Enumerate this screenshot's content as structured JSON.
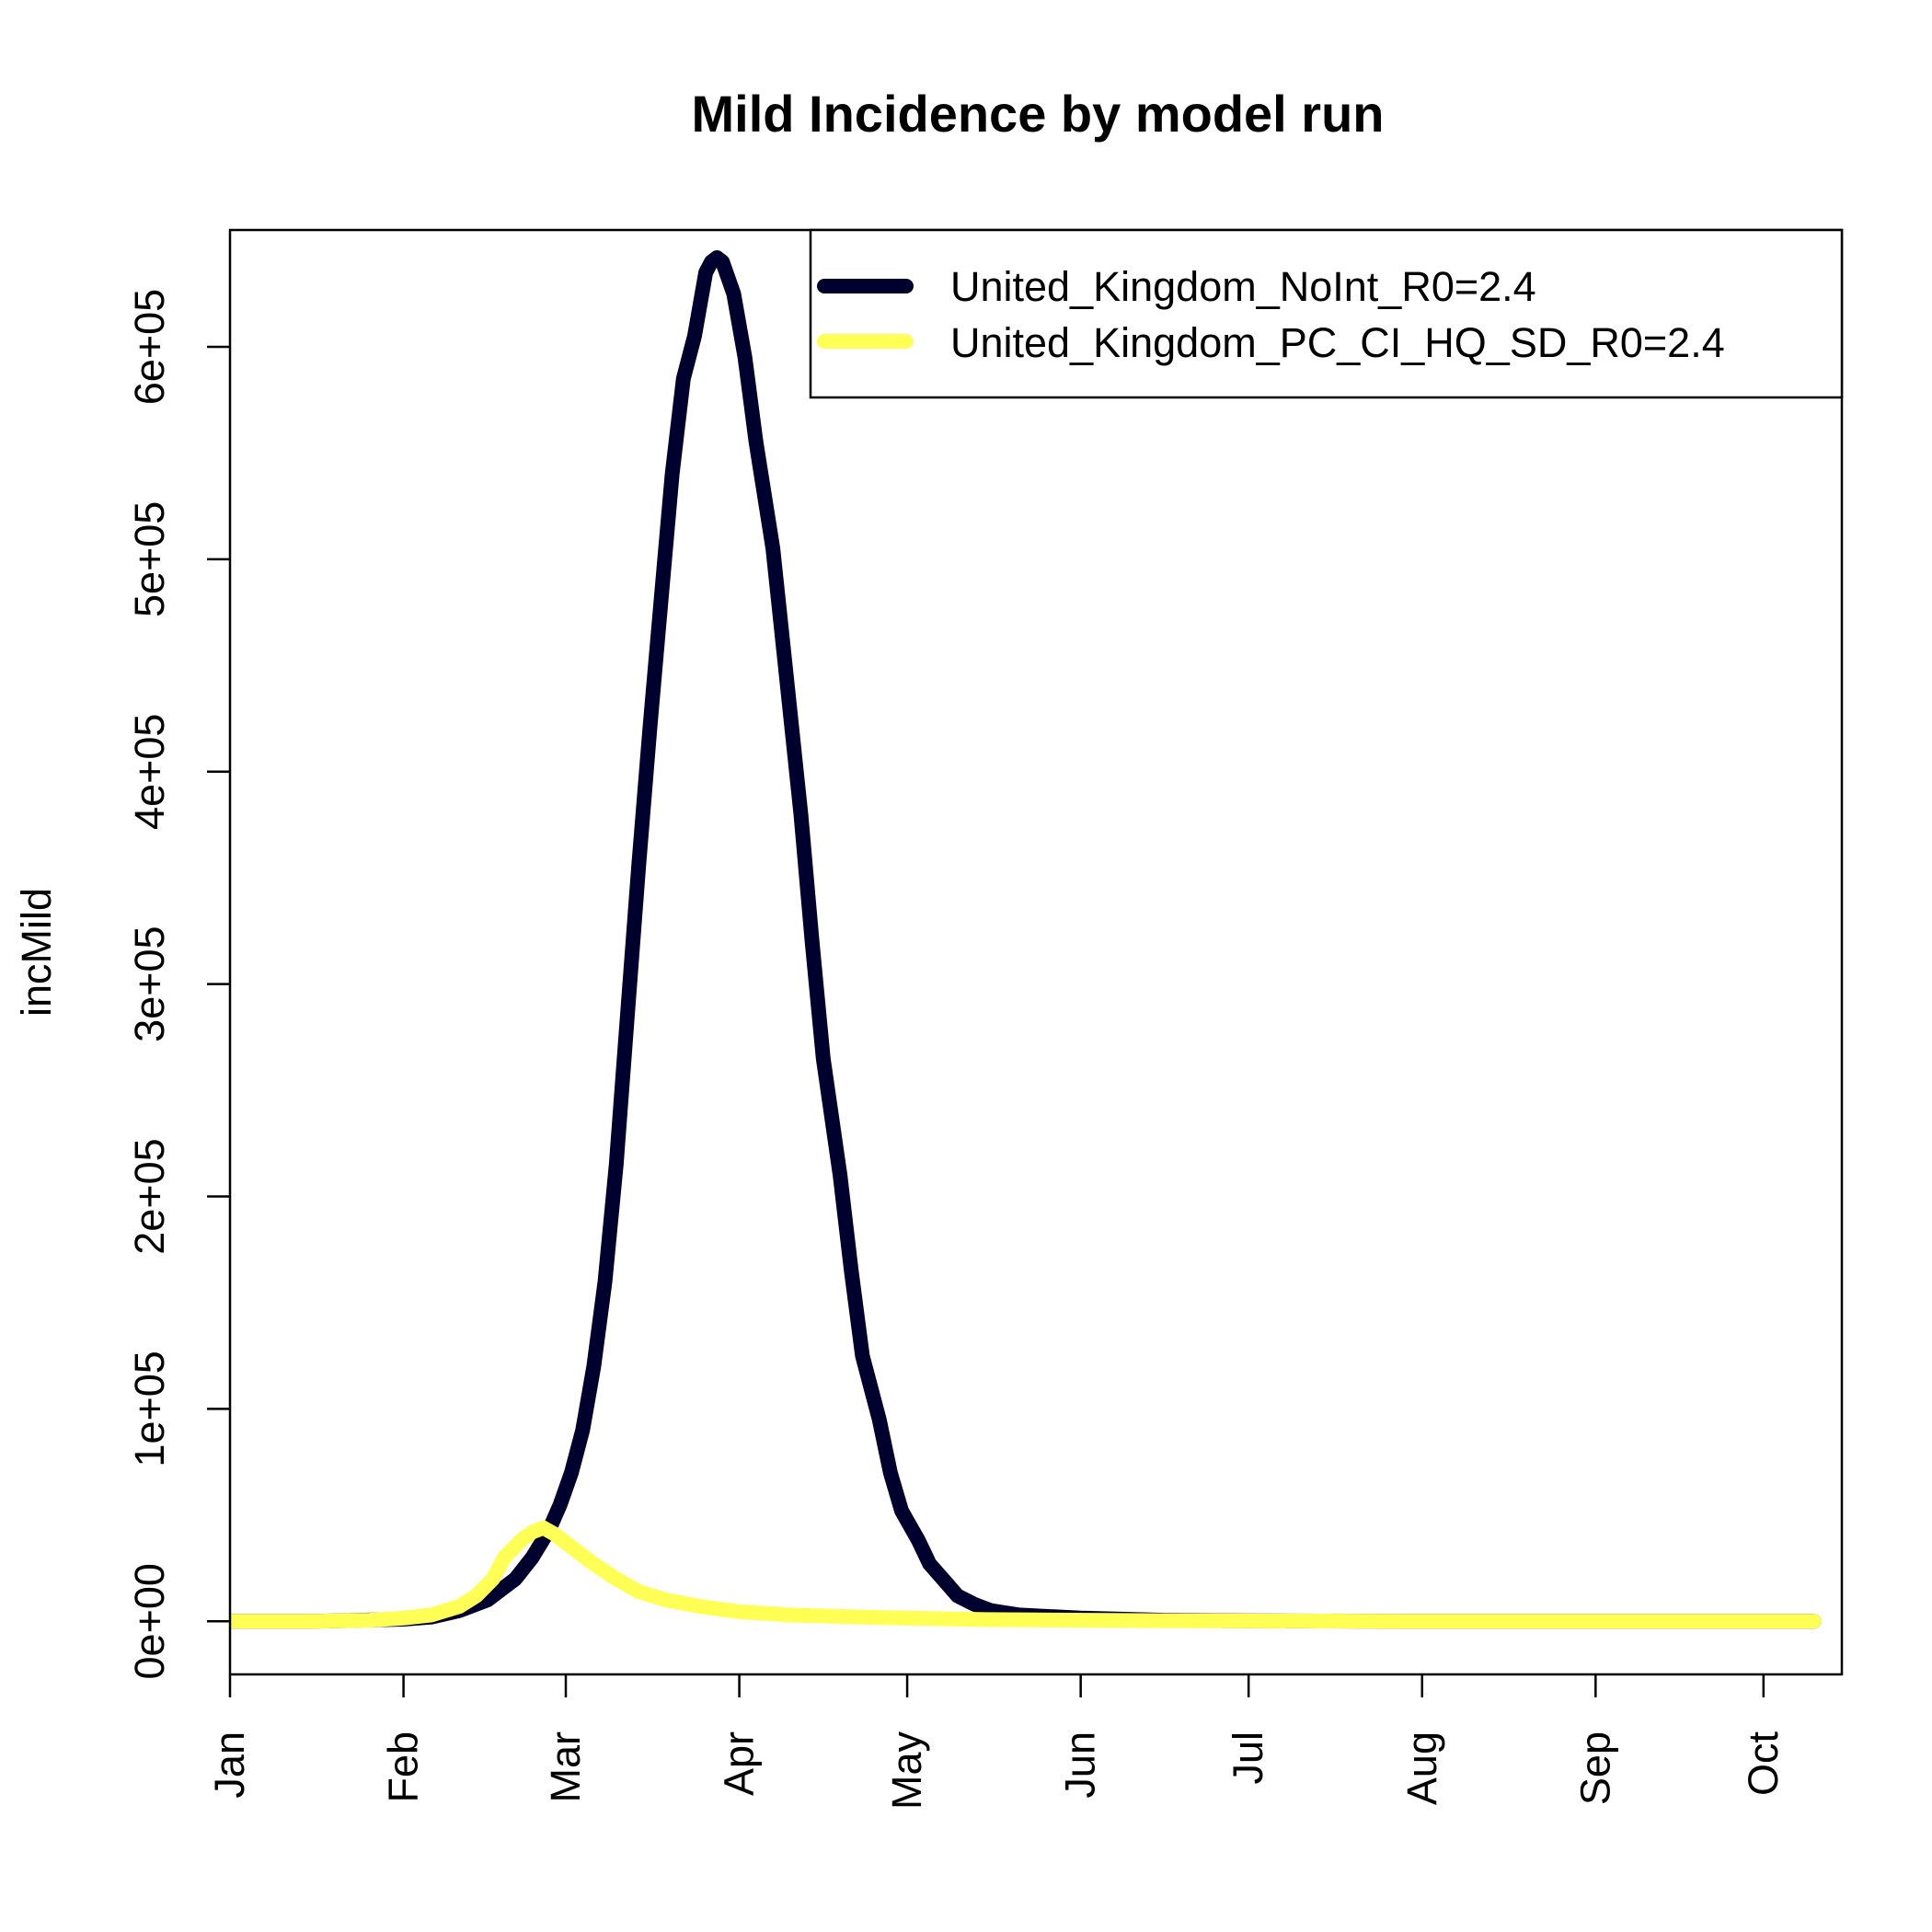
{
  "chart_data": {
    "type": "line",
    "title": "Mild Incidence by model run",
    "xlabel": "",
    "ylabel": "incMild",
    "xlim": [
      "2020-01-01",
      "2020-10-15"
    ],
    "ylim": [
      -25000,
      655000
    ],
    "x_ticks": [
      {
        "date": "2020-01-01",
        "label": "Jan"
      },
      {
        "date": "2020-02-01",
        "label": "Feb"
      },
      {
        "date": "2020-03-01",
        "label": "Mar"
      },
      {
        "date": "2020-04-01",
        "label": "Apr"
      },
      {
        "date": "2020-05-01",
        "label": "May"
      },
      {
        "date": "2020-06-01",
        "label": "Jun"
      },
      {
        "date": "2020-07-01",
        "label": "Jul"
      },
      {
        "date": "2020-08-01",
        "label": "Aug"
      },
      {
        "date": "2020-09-01",
        "label": "Sep"
      },
      {
        "date": "2020-10-01",
        "label": "Oct"
      }
    ],
    "y_ticks": [
      {
        "value": 0,
        "label": "0e+00"
      },
      {
        "value": 100000,
        "label": "1e+05"
      },
      {
        "value": 200000,
        "label": "2e+05"
      },
      {
        "value": 300000,
        "label": "3e+05"
      },
      {
        "value": 400000,
        "label": "4e+05"
      },
      {
        "value": 500000,
        "label": "5e+05"
      },
      {
        "value": 600000,
        "label": "6e+05"
      }
    ],
    "legend": {
      "position": "top-right"
    },
    "grid": false,
    "series": [
      {
        "name": "United_Kingdom_NoInt_R0=2.4",
        "color": "#00002e",
        "points": [
          [
            "2020-01-01",
            0
          ],
          [
            "2020-01-16",
            0
          ],
          [
            "2020-02-01",
            1000
          ],
          [
            "2020-02-06",
            2000
          ],
          [
            "2020-02-11",
            5000
          ],
          [
            "2020-02-16",
            10000
          ],
          [
            "2020-02-21",
            20000
          ],
          [
            "2020-02-24",
            30000
          ],
          [
            "2020-02-27",
            43000
          ],
          [
            "2020-02-29",
            55000
          ],
          [
            "2020-03-02",
            70000
          ],
          [
            "2020-03-04",
            90000
          ],
          [
            "2020-03-06",
            120000
          ],
          [
            "2020-03-08",
            160000
          ],
          [
            "2020-03-10",
            215000
          ],
          [
            "2020-03-12",
            285000
          ],
          [
            "2020-03-14",
            355000
          ],
          [
            "2020-03-16",
            420000
          ],
          [
            "2020-03-18",
            480000
          ],
          [
            "2020-03-20",
            540000
          ],
          [
            "2020-03-22",
            585000
          ],
          [
            "2020-03-24",
            605000
          ],
          [
            "2020-03-26",
            635000
          ],
          [
            "2020-03-27",
            640000
          ],
          [
            "2020-03-28",
            642000
          ],
          [
            "2020-03-29",
            640000
          ],
          [
            "2020-03-31",
            625000
          ],
          [
            "2020-04-02",
            595000
          ],
          [
            "2020-04-04",
            555000
          ],
          [
            "2020-04-07",
            505000
          ],
          [
            "2020-04-09",
            455000
          ],
          [
            "2020-04-12",
            380000
          ],
          [
            "2020-04-14",
            320000
          ],
          [
            "2020-04-16",
            265000
          ],
          [
            "2020-04-19",
            210000
          ],
          [
            "2020-04-21",
            165000
          ],
          [
            "2020-04-23",
            125000
          ],
          [
            "2020-04-26",
            95000
          ],
          [
            "2020-04-28",
            70000
          ],
          [
            "2020-04-30",
            52000
          ],
          [
            "2020-05-03",
            38000
          ],
          [
            "2020-05-05",
            27000
          ],
          [
            "2020-05-08",
            18000
          ],
          [
            "2020-05-10",
            12000
          ],
          [
            "2020-05-13",
            8000
          ],
          [
            "2020-05-16",
            5000
          ],
          [
            "2020-05-21",
            3000
          ],
          [
            "2020-06-01",
            1500
          ],
          [
            "2020-06-16",
            500
          ],
          [
            "2020-07-01",
            200
          ],
          [
            "2020-08-01",
            0
          ],
          [
            "2020-10-10",
            0
          ]
        ]
      },
      {
        "name": "United_Kingdom_PC_CI_HQ_SD_R0=2.4",
        "color": "#ffff55",
        "points": [
          [
            "2020-01-01",
            0
          ],
          [
            "2020-01-16",
            0
          ],
          [
            "2020-01-26",
            500
          ],
          [
            "2020-02-01",
            1500
          ],
          [
            "2020-02-06",
            3000
          ],
          [
            "2020-02-11",
            7000
          ],
          [
            "2020-02-14",
            12000
          ],
          [
            "2020-02-17",
            20000
          ],
          [
            "2020-02-19",
            30000
          ],
          [
            "2020-02-22",
            38000
          ],
          [
            "2020-02-24",
            42000
          ],
          [
            "2020-02-26",
            44000
          ],
          [
            "2020-02-28",
            41000
          ],
          [
            "2020-03-02",
            35000
          ],
          [
            "2020-03-06",
            27000
          ],
          [
            "2020-03-10",
            20000
          ],
          [
            "2020-03-14",
            14000
          ],
          [
            "2020-03-19",
            10000
          ],
          [
            "2020-03-25",
            7000
          ],
          [
            "2020-04-01",
            4500
          ],
          [
            "2020-04-10",
            3000
          ],
          [
            "2020-04-25",
            1800
          ],
          [
            "2020-05-15",
            800
          ],
          [
            "2020-06-15",
            300
          ],
          [
            "2020-08-01",
            0
          ],
          [
            "2020-10-10",
            0
          ]
        ]
      }
    ]
  }
}
